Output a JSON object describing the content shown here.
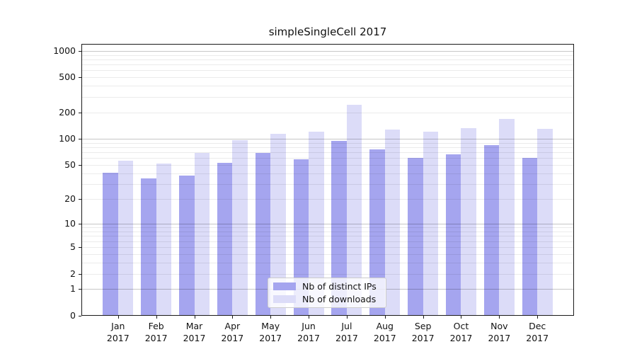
{
  "chart_data": {
    "type": "bar",
    "title": "simpleSingleCell 2017",
    "categories": [
      "Jan",
      "Feb",
      "Mar",
      "Apr",
      "May",
      "Jun",
      "Jul",
      "Aug",
      "Sep",
      "Oct",
      "Nov",
      "Dec"
    ],
    "category_year": "2017",
    "series": [
      {
        "name": "Nb of distinct IPs",
        "color": "#a5a5ef",
        "values": [
          41,
          35,
          38,
          53,
          69,
          58,
          95,
          75,
          60,
          66,
          84,
          60
        ]
      },
      {
        "name": "Nb of downloads",
        "color": "#dcdcf8",
        "values": [
          56,
          52,
          69,
          97,
          115,
          120,
          245,
          128,
          121,
          132,
          168,
          130
        ]
      }
    ],
    "xlabel": "",
    "ylabel": "",
    "yscale": "log1p",
    "ylim": [
      0,
      1200
    ],
    "y_ticks": [
      0,
      1,
      2,
      5,
      10,
      20,
      50,
      100,
      200,
      500,
      1000
    ],
    "grid": {
      "major_lines": [
        1,
        10,
        100,
        1000
      ],
      "minor_lines_per_decade": [
        2,
        3,
        4,
        5,
        6,
        7,
        8,
        9
      ],
      "grid_on": true
    },
    "legend": {
      "position": "bottom-center",
      "entries": [
        "Nb of distinct IPs",
        "Nb of downloads"
      ]
    }
  },
  "colors": {
    "background": "#ffffff",
    "axis": "#1a1a1a",
    "major_grid": "#c4c4c4",
    "minor_grid": "#e9e9e9",
    "text": "#111111",
    "legend_border": "#cccccc"
  }
}
